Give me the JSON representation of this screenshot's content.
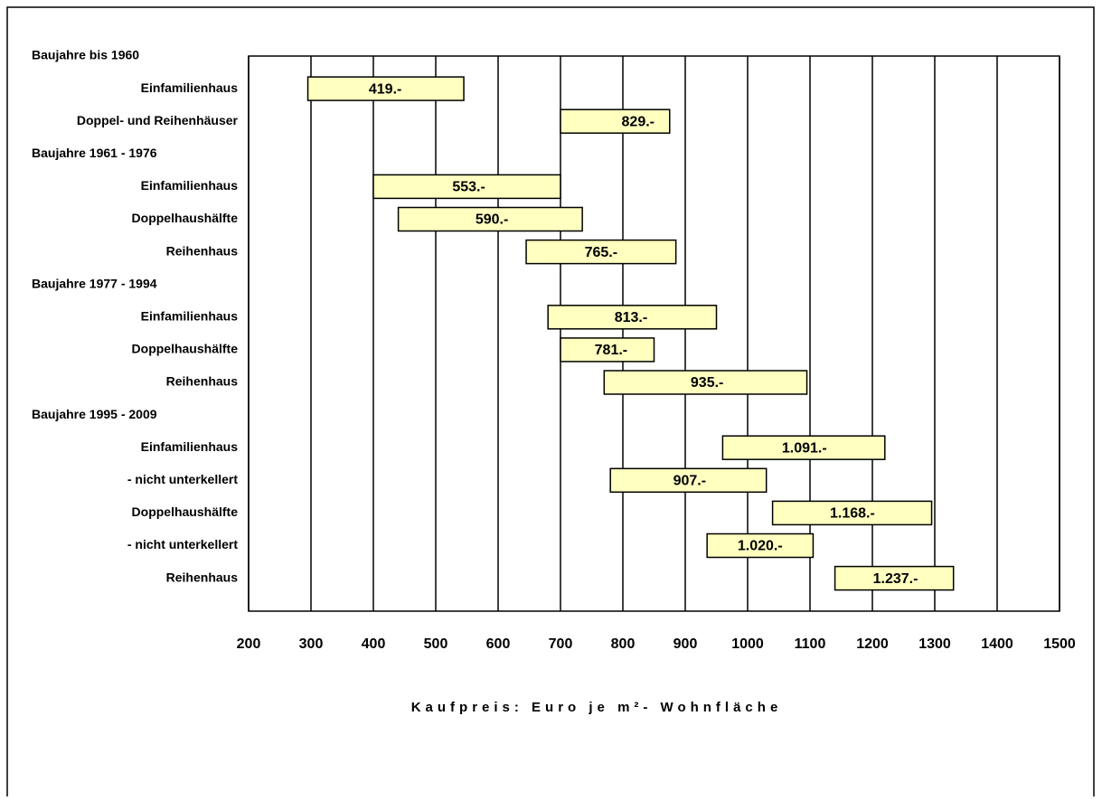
{
  "chart_data": {
    "type": "range-bar",
    "x_label": "Kaufpreis: Euro je m²- Wohnfläche",
    "xlim": [
      200,
      1500
    ],
    "xticks": [
      200,
      300,
      400,
      500,
      600,
      700,
      800,
      900,
      1000,
      1100,
      1200,
      1300,
      1400,
      1500
    ],
    "grid": true,
    "color": "#ffffc0",
    "groups": [
      {
        "name": "Baujahre bis 1960",
        "categories": [
          "Einfamilienhaus",
          "Doppel- und Reihenhäuser"
        ],
        "low": [
          295,
          700
        ],
        "high": [
          545,
          875
        ],
        "values": [
          419,
          829
        ],
        "value_labels": [
          "419.-",
          "829.-"
        ]
      },
      {
        "name": "Baujahre 1961 - 1976",
        "categories": [
          "Einfamilienhaus",
          "Doppelhaushälfte",
          "Reihenhaus"
        ],
        "low": [
          400,
          440,
          645
        ],
        "high": [
          700,
          735,
          885
        ],
        "values": [
          553,
          590,
          765
        ],
        "value_labels": [
          "553.-",
          "590.-",
          "765.-"
        ]
      },
      {
        "name": "Baujahre 1977 - 1994",
        "categories": [
          "Einfamilienhaus",
          "Doppelhaushälfte",
          "Reihenhaus"
        ],
        "low": [
          680,
          700,
          770
        ],
        "high": [
          950,
          850,
          1095
        ],
        "values": [
          813,
          781,
          935
        ],
        "value_labels": [
          "813.-",
          "781.-",
          "935.-"
        ]
      },
      {
        "name": "Baujahre 1995 - 2009",
        "categories": [
          "Einfamilienhaus",
          "- nicht unterkellert",
          "Doppelhaushälfte",
          "- nicht unterkellert",
          "Reihenhaus"
        ],
        "low": [
          960,
          780,
          1040,
          935,
          1140
        ],
        "high": [
          1220,
          1030,
          1295,
          1105,
          1330
        ],
        "values": [
          1091,
          907,
          1168,
          1020,
          1237
        ],
        "value_labels": [
          "1.091.-",
          "907.-",
          "1.168.-",
          "1.020.-",
          "1.237.-"
        ]
      }
    ]
  }
}
